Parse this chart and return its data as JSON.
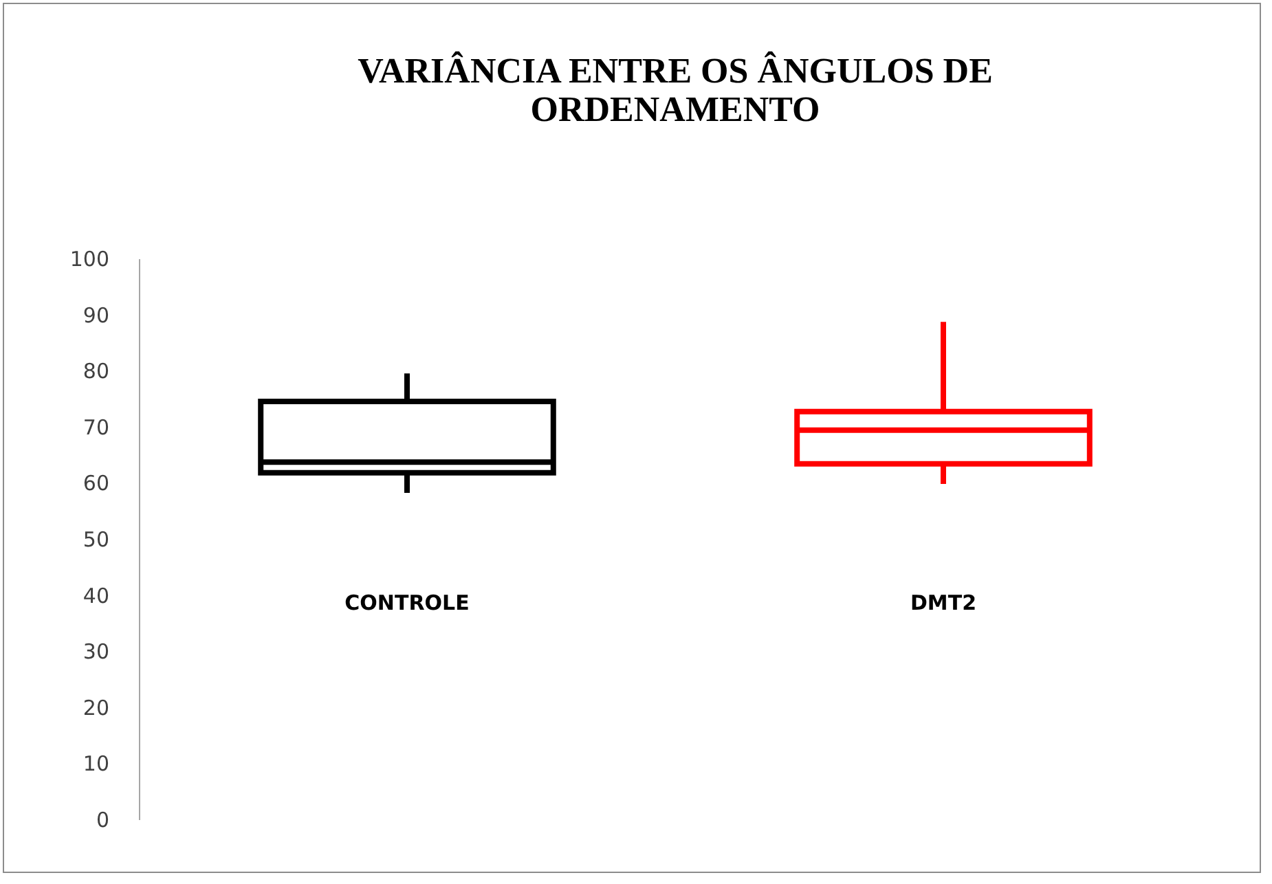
{
  "chart_data": {
    "type": "box",
    "title": [
      "VARIÂNCIA ENTRE OS ÂNGULOS DE",
      "ORDENAMENTO"
    ],
    "categories": [
      "CONTROLE",
      "DMT2"
    ],
    "boxes": [
      {
        "low": 58.2,
        "q1": 61.8,
        "median": 63.7,
        "q3": 74.5,
        "high": 79.5
      },
      {
        "low": 59.8,
        "q1": 63.4,
        "median": 69.4,
        "q3": 72.7,
        "high": 88.7
      }
    ],
    "colors": [
      "#000000",
      "#ff0000"
    ],
    "ylim": [
      0,
      100
    ],
    "yticks": [
      0,
      10,
      20,
      30,
      40,
      50,
      60,
      70,
      80,
      90,
      100
    ],
    "grid": false
  }
}
